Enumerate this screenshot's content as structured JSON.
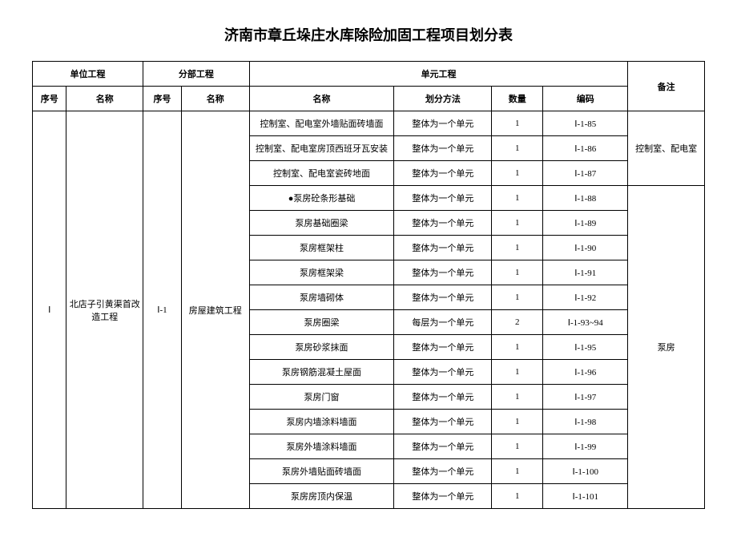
{
  "title": "济南市章丘垛庄水库除险加固工程项目划分表",
  "headers": {
    "unit_project": "单位工程",
    "part_project": "分部工程",
    "cell_project": "单元工程",
    "remark": "备注",
    "seq": "序号",
    "name": "名称",
    "method": "划分方法",
    "qty": "数量",
    "code": "编码"
  },
  "unit": {
    "seq": "Ⅰ",
    "name": "北店子引黄渠首改造工程"
  },
  "part": {
    "seq": "Ⅰ-1",
    "name": "房屋建筑工程"
  },
  "rows": [
    {
      "name": "控制室、配电室外墙贴面砖墙面",
      "method": "整体为一个单元",
      "qty": "1",
      "code": "Ⅰ-1-85"
    },
    {
      "name": "控制室、配电室房顶西班牙瓦安装",
      "method": "整体为一个单元",
      "qty": "1",
      "code": "Ⅰ-1-86"
    },
    {
      "name": "控制室、配电室瓷砖地面",
      "method": "整体为一个单元",
      "qty": "1",
      "code": "Ⅰ-1-87"
    },
    {
      "name": "●泵房砼条形基础",
      "method": "整体为一个单元",
      "qty": "1",
      "code": "Ⅰ-1-88"
    },
    {
      "name": "泵房基础圈梁",
      "method": "整体为一个单元",
      "qty": "1",
      "code": "Ⅰ-1-89"
    },
    {
      "name": "泵房框架柱",
      "method": "整体为一个单元",
      "qty": "1",
      "code": "Ⅰ-1-90"
    },
    {
      "name": "泵房框架梁",
      "method": "整体为一个单元",
      "qty": "1",
      "code": "Ⅰ-1-91"
    },
    {
      "name": "泵房墙砌体",
      "method": "整体为一个单元",
      "qty": "1",
      "code": "Ⅰ-1-92"
    },
    {
      "name": "泵房圈梁",
      "method": "每层为一个单元",
      "qty": "2",
      "code": "Ⅰ-1-93~94"
    },
    {
      "name": "泵房砂浆抹面",
      "method": "整体为一个单元",
      "qty": "1",
      "code": "Ⅰ-1-95"
    },
    {
      "name": "泵房钢筋混凝土屋面",
      "method": "整体为一个单元",
      "qty": "1",
      "code": "Ⅰ-1-96"
    },
    {
      "name": "泵房门窗",
      "method": "整体为一个单元",
      "qty": "1",
      "code": "Ⅰ-1-97"
    },
    {
      "name": "泵房内墙涂料墙面",
      "method": "整体为一个单元",
      "qty": "1",
      "code": "Ⅰ-1-98"
    },
    {
      "name": "泵房外墙涂料墙面",
      "method": "整体为一个单元",
      "qty": "1",
      "code": "Ⅰ-1-99"
    },
    {
      "name": "泵房外墙贴面砖墙面",
      "method": "整体为一个单元",
      "qty": "1",
      "code": "Ⅰ-1-100"
    },
    {
      "name": "泵房房顶内保温",
      "method": "整体为一个单元",
      "qty": "1",
      "code": "Ⅰ-1-101"
    }
  ],
  "remarks": {
    "r1": "控制室、配电室",
    "r2": "泵房"
  }
}
